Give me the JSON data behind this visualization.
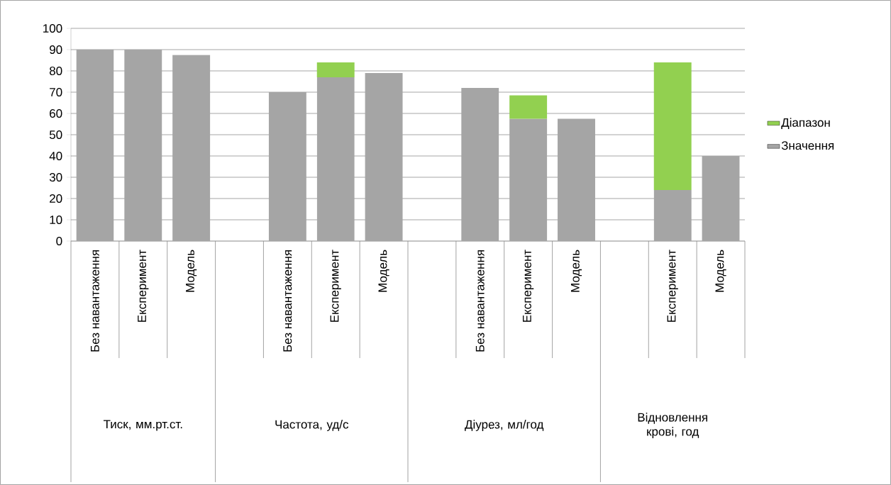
{
  "chart_data": {
    "type": "bar",
    "stacked": true,
    "categories": [
      "Без навантаження",
      "Експеримент",
      "Модель",
      null,
      "Без навантаження",
      "Експеримент",
      "Модель",
      null,
      "Без навантаження",
      "Експеримент",
      "Модель",
      null,
      "Експеримент",
      "Модель"
    ],
    "series": [
      {
        "name": "Значення",
        "color": "#a5a5a5",
        "values": [
          90,
          90,
          87.5,
          null,
          70,
          77,
          79,
          null,
          72,
          57.5,
          57.5,
          null,
          24,
          40
        ]
      },
      {
        "name": "Діапазон",
        "color": "#92d050",
        "values": [
          null,
          null,
          null,
          null,
          null,
          7,
          null,
          null,
          null,
          11,
          null,
          null,
          60,
          null
        ]
      }
    ],
    "ylim": [
      0,
      100
    ],
    "yticks": [
      0,
      10,
      20,
      30,
      40,
      50,
      60,
      70,
      80,
      90,
      100
    ],
    "grid": "y",
    "legend": "right",
    "annotations": [
      "Тиск, мм.рт.ст.",
      "Частота, уд/с",
      "Діурез, мл/год",
      "Відновлення крові, год"
    ]
  }
}
